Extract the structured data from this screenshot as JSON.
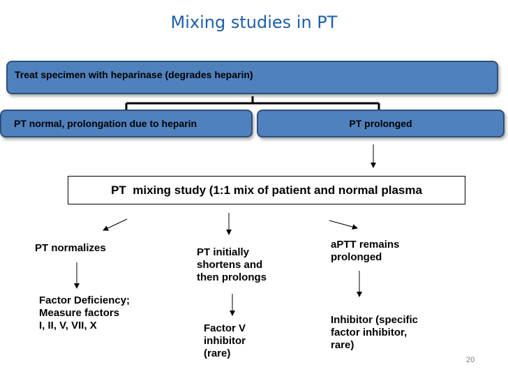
{
  "title": "Mixing studies in PT",
  "nodes": {
    "top": "Treat specimen with heparinase (degrades heparin)",
    "left": "PT normal, prolongation due to heparin",
    "right": "PT prolonged",
    "mixing": "PT  mixing study (1:1 mix of patient and normal plasma"
  },
  "outcomes": {
    "normalizes": {
      "label": "PT normalizes",
      "result": [
        "Factor Deficiency;",
        "Measure factors",
        "I, II, V, VII, X"
      ]
    },
    "initially": {
      "label": [
        "PT initially",
        "shortens and",
        "then prolongs"
      ],
      "result": [
        "Factor V",
        "inhibitor",
        "(rare)"
      ]
    },
    "remains": {
      "label": [
        "aPTT remains",
        "prolonged"
      ],
      "result": [
        "Inhibitor (specific",
        "factor inhibitor,",
        "rare)"
      ]
    }
  },
  "page_number": "20",
  "colors": {
    "box_fill": "#4f81bd",
    "box_border": "#2e4f7a",
    "title": "#1f5fa8"
  }
}
